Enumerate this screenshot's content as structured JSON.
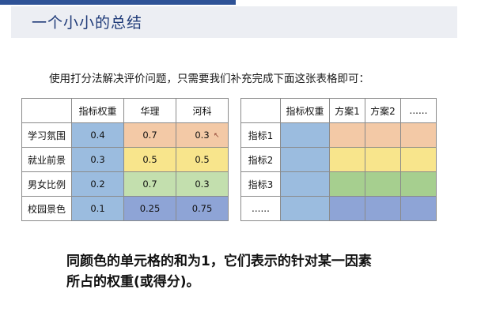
{
  "header": {
    "title": "一个小小的总结"
  },
  "intro": "使用打分法解决评价问题，只需要我们补充完成下面这张表格即可：",
  "left_table": {
    "columns": [
      "",
      "指标权重",
      "华理",
      "河科"
    ],
    "rows": [
      {
        "label": "学习氛围",
        "values": [
          "0.4",
          "0.7",
          "0.3"
        ]
      },
      {
        "label": "就业前景",
        "values": [
          "0.3",
          "0.5",
          "0.5"
        ]
      },
      {
        "label": "男女比例",
        "values": [
          "0.2",
          "0.7",
          "0.3"
        ]
      },
      {
        "label": "校园景色",
        "values": [
          "0.1",
          "0.25",
          "0.75"
        ]
      }
    ]
  },
  "right_table": {
    "columns": [
      "",
      "指标权重",
      "方案1",
      "方案2",
      "......"
    ],
    "rows": [
      {
        "label": "指标1"
      },
      {
        "label": "指标2"
      },
      {
        "label": "指标3"
      },
      {
        "label": "......"
      }
    ]
  },
  "colors": {
    "weight": "#9bbcdf",
    "row1": "#f3c9a6",
    "row2": "#f8e58c",
    "row3": "#a6cf8f",
    "row4": "#8ea4d6",
    "title": "#1e3a78"
  },
  "summary": {
    "line1": "同颜色的单元格的和为1，它们表示的针对某一因素",
    "line2": "所占的权重(或得分)。"
  }
}
